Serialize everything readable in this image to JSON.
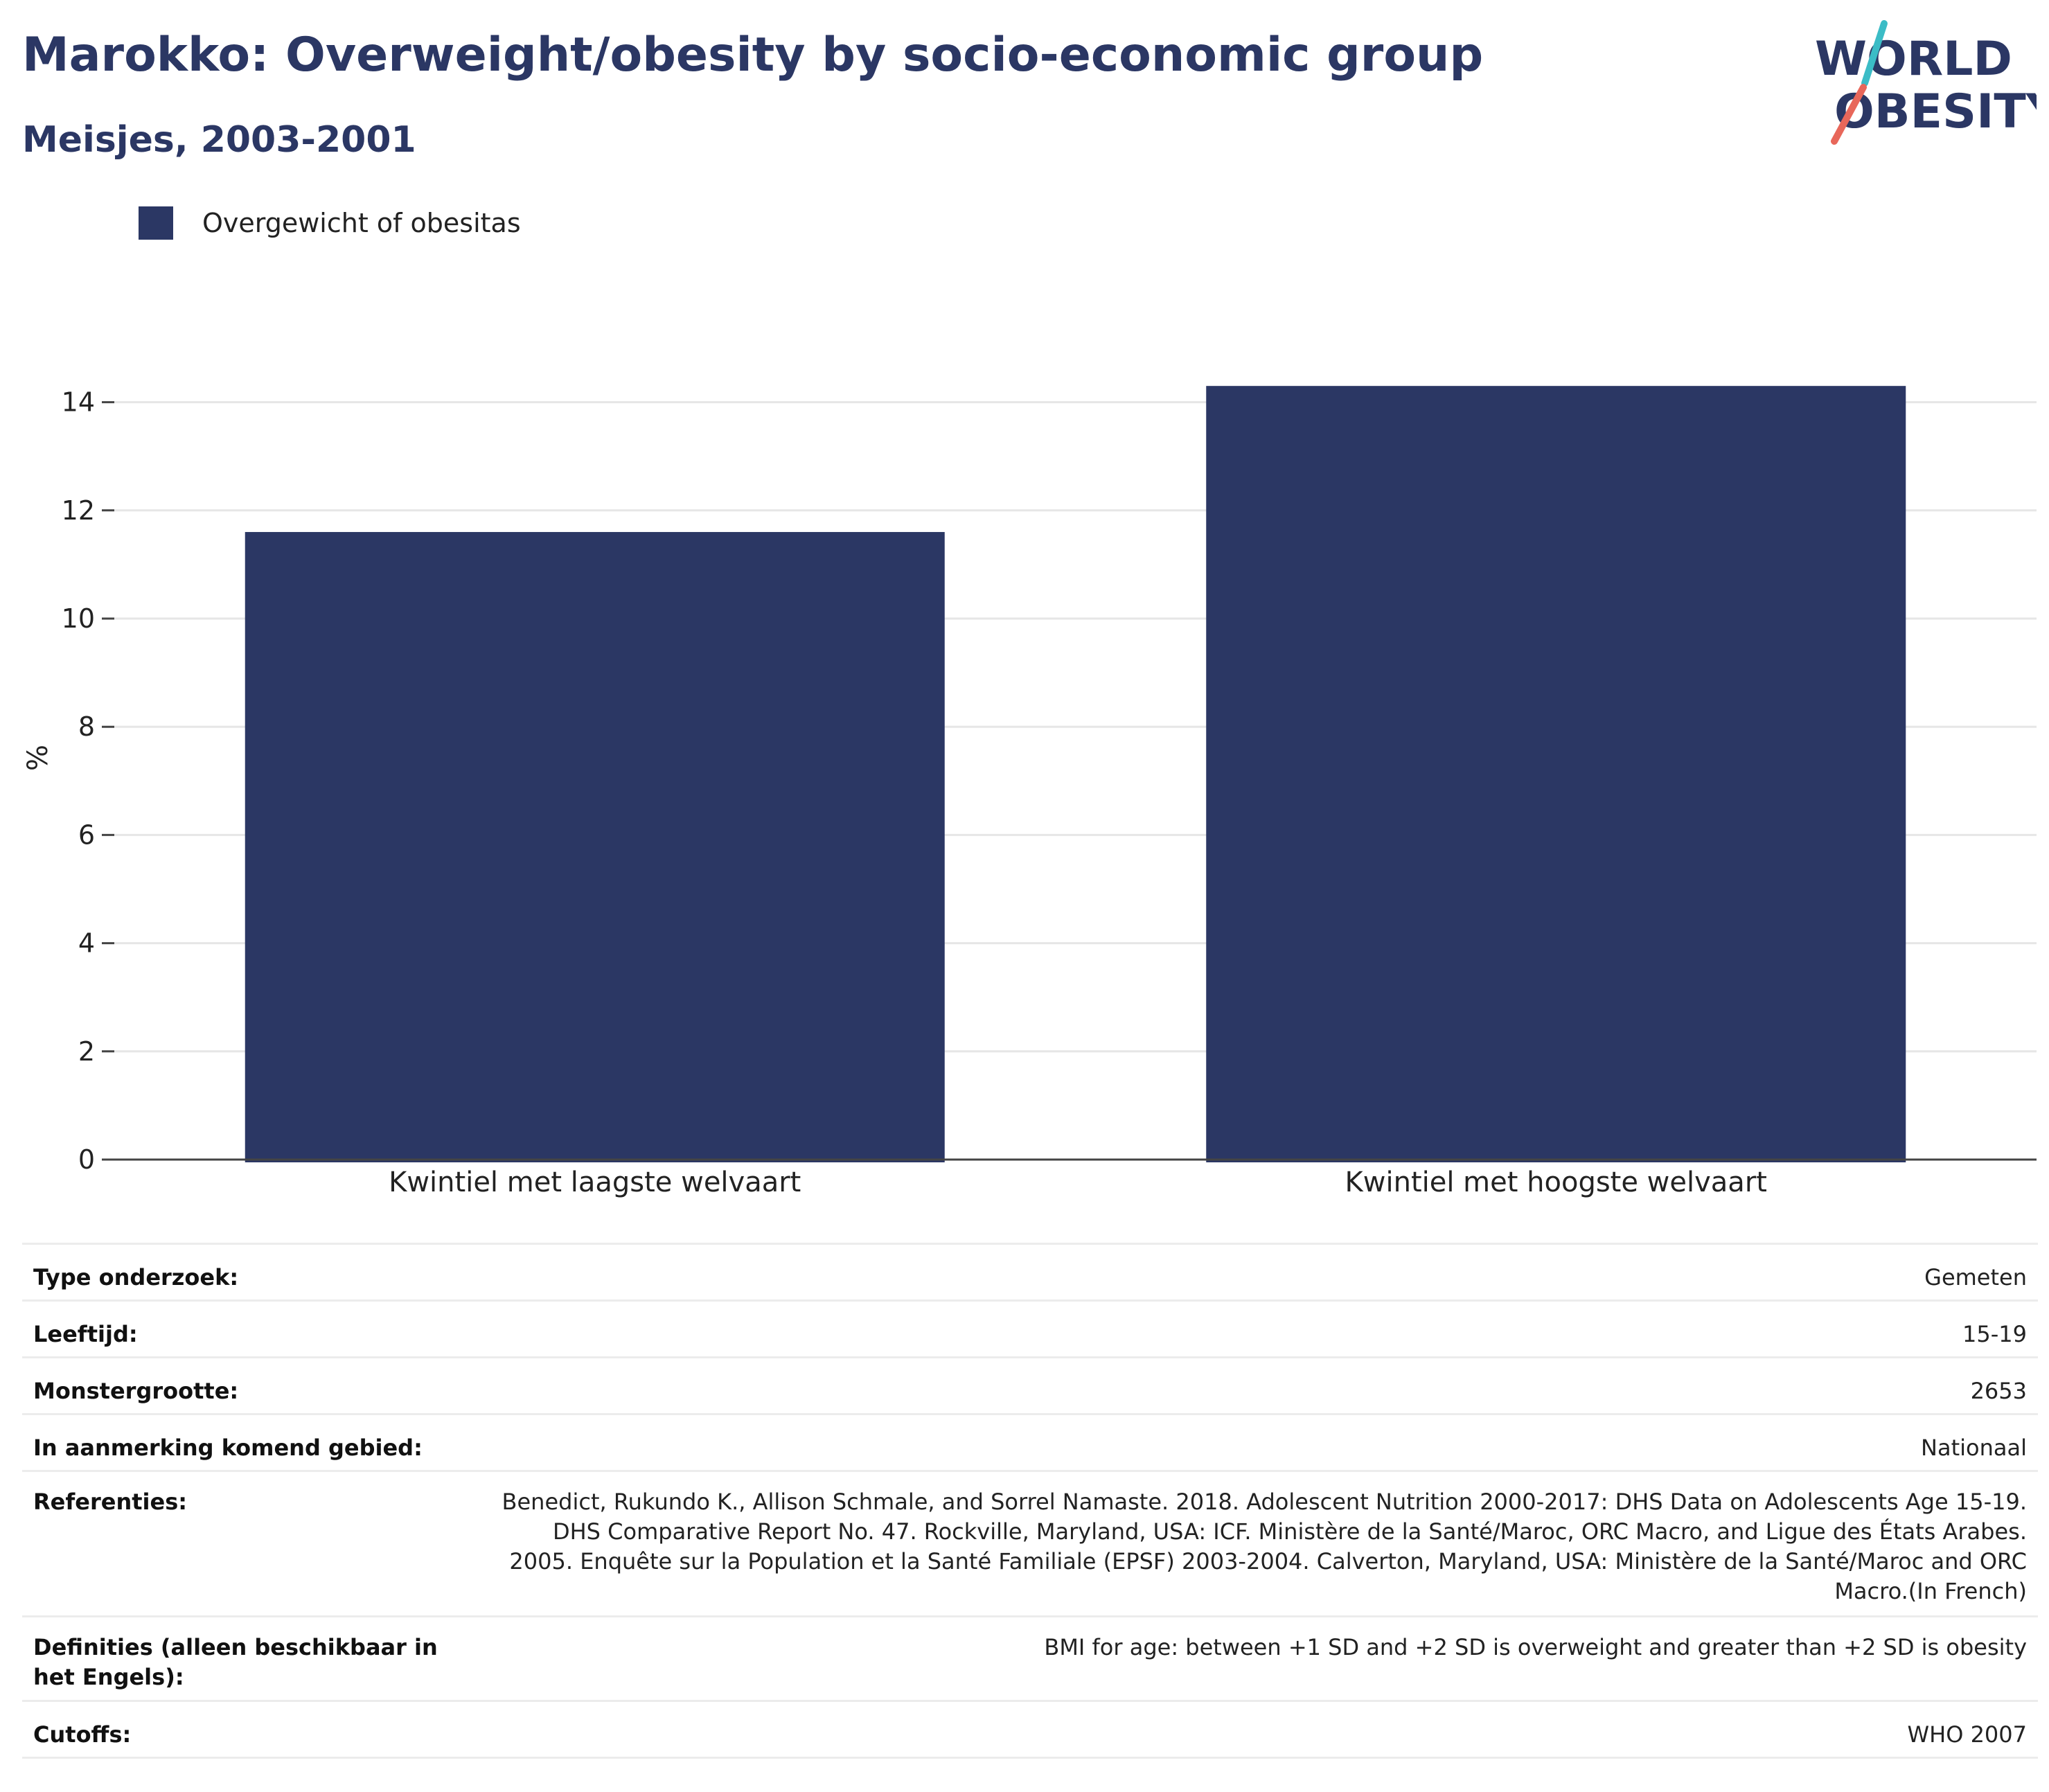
{
  "header": {
    "title": "Marokko: Overweight/obesity by socio-economic group",
    "subtitle": "Meisjes, 2003-2001"
  },
  "logo": {
    "line1": "WORLD",
    "line2": "OBESITY",
    "colors": {
      "text": "#2b3764",
      "slash_top": "#3bbcc6",
      "slash_bottom": "#e8675a"
    }
  },
  "legend": {
    "label": "Overgewicht of obesitas",
    "color": "#2b3764"
  },
  "chart_data": {
    "type": "bar",
    "categories": [
      "Kwintiel met laagste welvaart",
      "Kwintiel met hoogste welvaart"
    ],
    "series": [
      {
        "name": "Overgewicht of obesitas",
        "values": [
          11.6,
          14.3
        ],
        "color": "#2b3764"
      }
    ],
    "ylabel": "%",
    "xlabel": "",
    "ylim": [
      0,
      15
    ],
    "yticks": [
      0,
      2,
      4,
      6,
      8,
      10,
      12,
      14
    ],
    "grid": true,
    "legend_position": "top-left"
  },
  "info_table": [
    {
      "label": "Type onderzoek:",
      "value": "Gemeten"
    },
    {
      "label": "Leeftijd:",
      "value": "15-19"
    },
    {
      "label": "Monstergrootte:",
      "value": "2653"
    },
    {
      "label": "In aanmerking komend gebied:",
      "value": "Nationaal"
    },
    {
      "label": "Referenties:",
      "value": "Benedict, Rukundo K., Allison Schmale, and Sorrel Namaste. 2018. Adolescent Nutrition 2000-2017: DHS Data on Adolescents Age 15-19. DHS Comparative Report No. 47. Rockville, Maryland, USA: ICF. Ministère de la Santé/Maroc, ORC Macro, and Ligue des États Arabes. 2005. Enquête sur la Population et la Santé Familiale (EPSF) 2003-2004. Calverton, Maryland, USA: Ministère de la Santé/Maroc and ORC Macro.(In French)"
    },
    {
      "label": "Definities (alleen beschikbaar in het Engels):",
      "value": "BMI for age: between +1 SD and +2 SD is overweight and greater than +2 SD is obesity"
    },
    {
      "label": "Cutoffs:",
      "value": "WHO 2007"
    }
  ]
}
